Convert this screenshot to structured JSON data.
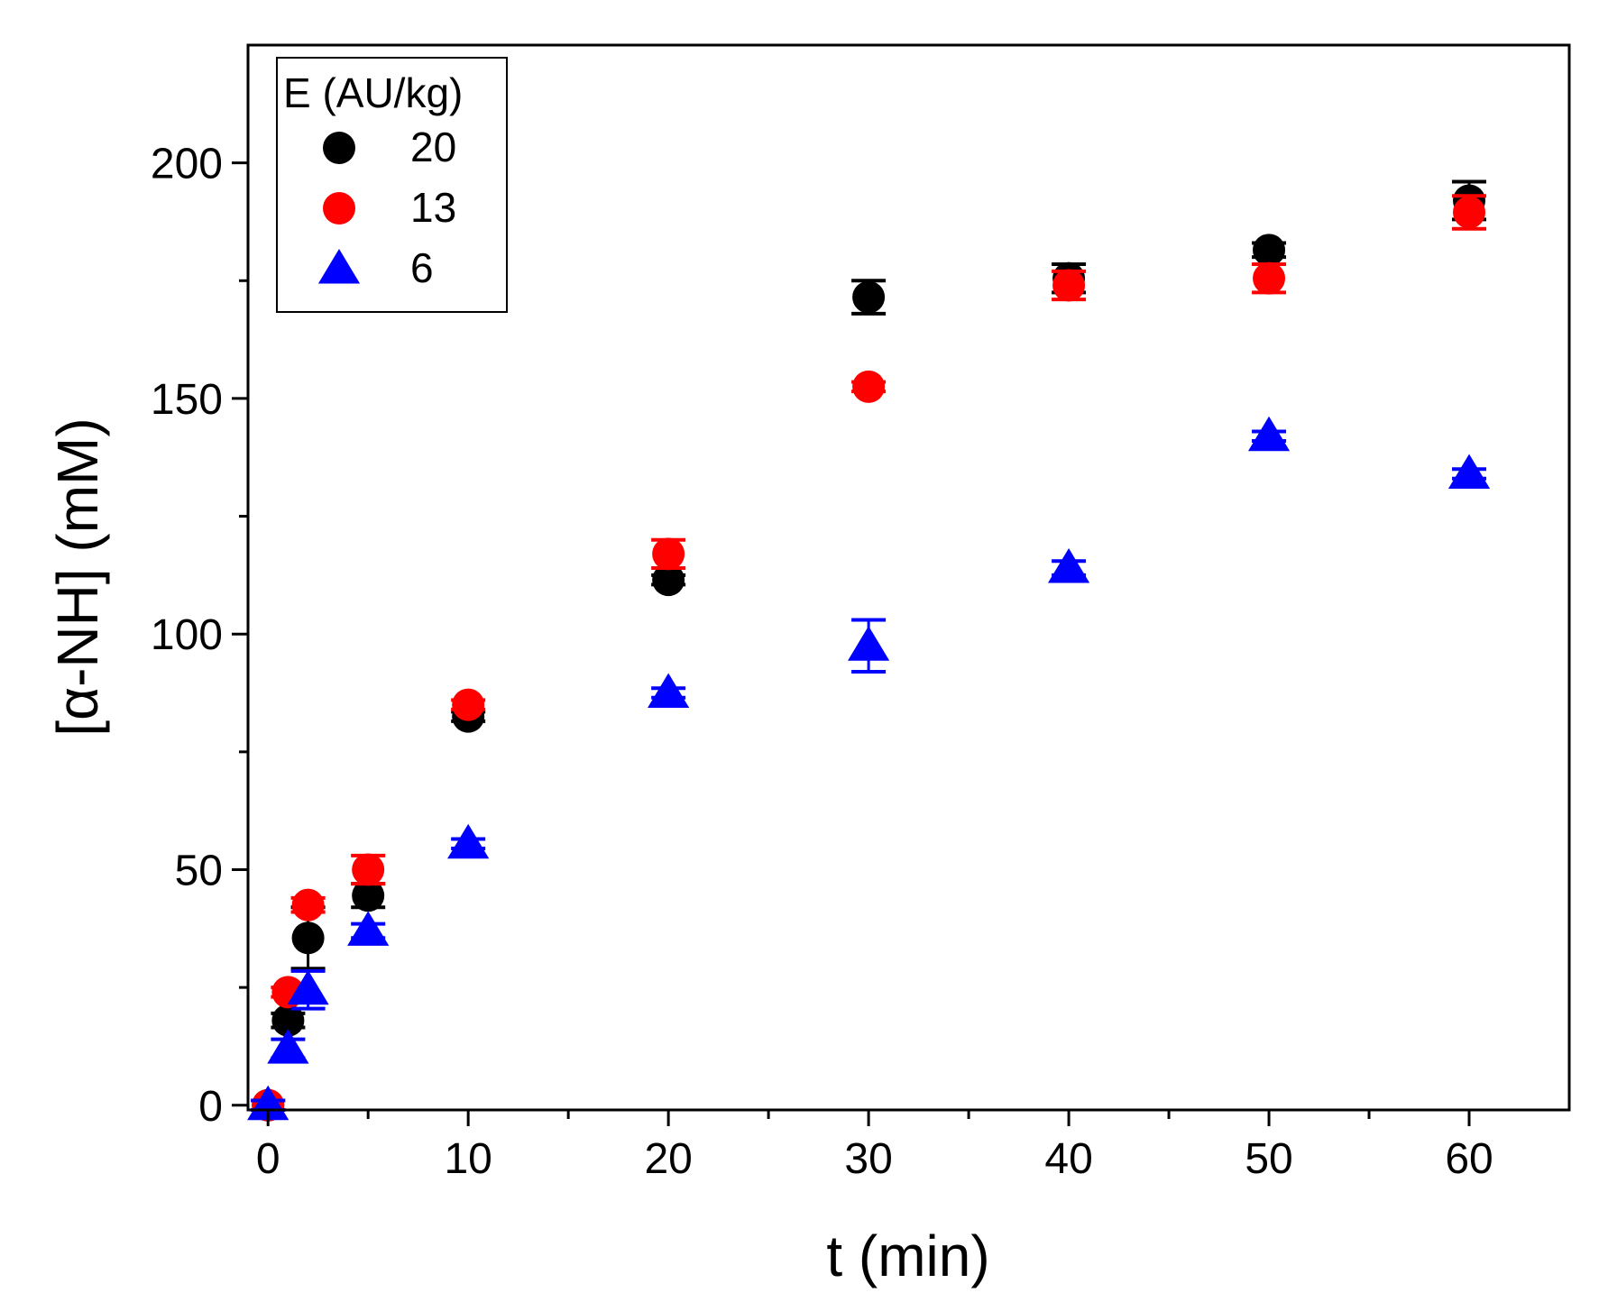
{
  "chart_data": {
    "type": "scatter",
    "xlabel": "t (min)",
    "ylabel": "[α-NH] (mM)",
    "xlim": [
      -1,
      65
    ],
    "ylim": [
      -1,
      225
    ],
    "xticks": [
      0,
      10,
      20,
      30,
      40,
      50,
      60
    ],
    "yticks": [
      0,
      50,
      100,
      150,
      200
    ],
    "grid": false,
    "legend": {
      "title": "E (AU/kg)",
      "position": "top-left"
    },
    "series": [
      {
        "name": "20",
        "color": "#000000",
        "marker": "circle",
        "points": [
          {
            "x": 0,
            "y": 0,
            "err": 1
          },
          {
            "x": 1,
            "y": 18,
            "err": 1.5
          },
          {
            "x": 2,
            "y": 35.5,
            "err": 6.5
          },
          {
            "x": 5,
            "y": 44.5,
            "err": 2.5
          },
          {
            "x": 10,
            "y": 82.5,
            "err": 1
          },
          {
            "x": 20,
            "y": 111.5,
            "err": 1
          },
          {
            "x": 30,
            "y": 171.5,
            "err": 3.5
          },
          {
            "x": 40,
            "y": 175.5,
            "err": 3
          },
          {
            "x": 50,
            "y": 181.5,
            "err": 1.5
          },
          {
            "x": 60,
            "y": 192,
            "err": 4
          }
        ]
      },
      {
        "name": "13",
        "color": "#ff0000",
        "marker": "circle",
        "points": [
          {
            "x": 0,
            "y": 0,
            "err": 1
          },
          {
            "x": 1,
            "y": 24,
            "err": 1
          },
          {
            "x": 2,
            "y": 42.5,
            "err": 1.5
          },
          {
            "x": 5,
            "y": 50,
            "err": 3
          },
          {
            "x": 10,
            "y": 85,
            "err": 1
          },
          {
            "x": 20,
            "y": 117,
            "err": 3
          },
          {
            "x": 30,
            "y": 152.5,
            "err": 1
          },
          {
            "x": 40,
            "y": 174,
            "err": 3
          },
          {
            "x": 50,
            "y": 175.5,
            "err": 3
          },
          {
            "x": 60,
            "y": 189.5,
            "err": 3.5
          }
        ]
      },
      {
        "name": "6",
        "color": "#0000ff",
        "marker": "triangle",
        "points": [
          {
            "x": 0,
            "y": 0,
            "err": 1
          },
          {
            "x": 1,
            "y": 12,
            "err": 2
          },
          {
            "x": 2,
            "y": 24.5,
            "err": 4
          },
          {
            "x": 5,
            "y": 37,
            "err": 1.5
          },
          {
            "x": 10,
            "y": 55.5,
            "err": 1
          },
          {
            "x": 20,
            "y": 87.5,
            "err": 1
          },
          {
            "x": 30,
            "y": 97.5,
            "err": 5.5
          },
          {
            "x": 40,
            "y": 114,
            "err": 1.5
          },
          {
            "x": 50,
            "y": 142,
            "err": 1
          },
          {
            "x": 60,
            "y": 134,
            "err": 1
          }
        ]
      }
    ]
  }
}
